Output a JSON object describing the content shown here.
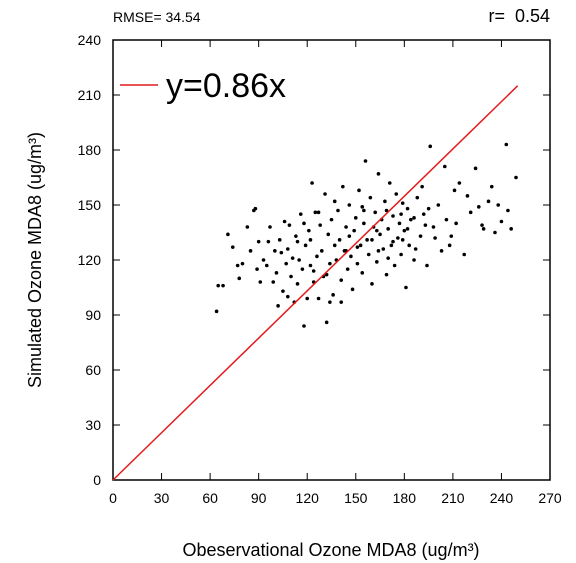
{
  "chart_data": {
    "type": "scatter",
    "title": "",
    "rmse_label": "RMSE= 34.54",
    "r_label": "r=  0.54",
    "xlabel": "Obeservational Ozone MDA8 (ug/m³)",
    "ylabel": "Simulated Ozone MDA8 (ug/m³)",
    "xlim": [
      0,
      270
    ],
    "ylim": [
      0,
      240
    ],
    "xticks": [
      0,
      30,
      60,
      90,
      120,
      150,
      180,
      210,
      240,
      270
    ],
    "xtick_labels": [
      "0",
      "30",
      "60",
      "90",
      "120",
      "150",
      "180",
      "210",
      "240",
      "270"
    ],
    "yticks": [
      0,
      30,
      60,
      90,
      120,
      150,
      180,
      210,
      240
    ],
    "ytick_labels": [
      "0",
      "30",
      "60",
      "90",
      "120",
      "150",
      "180",
      "210",
      "240"
    ],
    "grid": false,
    "legend_position": "top-left",
    "fit_line": {
      "label": "y=0.86x",
      "slope": 0.86,
      "x_range": [
        0,
        250
      ],
      "color": "#e41a1c"
    },
    "point_color": "#000000",
    "points": [
      [
        64,
        92
      ],
      [
        65,
        106
      ],
      [
        68,
        106
      ],
      [
        71,
        134
      ],
      [
        74,
        127
      ],
      [
        77,
        117
      ],
      [
        78,
        110
      ],
      [
        80,
        118
      ],
      [
        83,
        138
      ],
      [
        85,
        125
      ],
      [
        87,
        147
      ],
      [
        88,
        148
      ],
      [
        89,
        115
      ],
      [
        90,
        130
      ],
      [
        91,
        108
      ],
      [
        93,
        120
      ],
      [
        95,
        117
      ],
      [
        96,
        130
      ],
      [
        97,
        138
      ],
      [
        99,
        108
      ],
      [
        100,
        125
      ],
      [
        101,
        113
      ],
      [
        102,
        95
      ],
      [
        103,
        131
      ],
      [
        104,
        124
      ],
      [
        105,
        103
      ],
      [
        106,
        141
      ],
      [
        107,
        118
      ],
      [
        108,
        126
      ],
      [
        109,
        139
      ],
      [
        110,
        111
      ],
      [
        111,
        121
      ],
      [
        112,
        97
      ],
      [
        113,
        133
      ],
      [
        114,
        107
      ],
      [
        115,
        120
      ],
      [
        116,
        145
      ],
      [
        117,
        115
      ],
      [
        118,
        84
      ],
      [
        119,
        128
      ],
      [
        120,
        99
      ],
      [
        121,
        136
      ],
      [
        122,
        117
      ],
      [
        123,
        162
      ],
      [
        124,
        108
      ],
      [
        125,
        146
      ],
      [
        126,
        122
      ],
      [
        127,
        99
      ],
      [
        128,
        139
      ],
      [
        129,
        125
      ],
      [
        130,
        111
      ],
      [
        131,
        156
      ],
      [
        132,
        86
      ],
      [
        133,
        134
      ],
      [
        134,
        118
      ],
      [
        135,
        142
      ],
      [
        136,
        101
      ],
      [
        137,
        128
      ],
      [
        138,
        120
      ],
      [
        139,
        147
      ],
      [
        140,
        131
      ],
      [
        141,
        109
      ],
      [
        142,
        160
      ],
      [
        143,
        125
      ],
      [
        144,
        138
      ],
      [
        145,
        115
      ],
      [
        146,
        150
      ],
      [
        147,
        122
      ],
      [
        148,
        104
      ],
      [
        149,
        136
      ],
      [
        150,
        143
      ],
      [
        151,
        118
      ],
      [
        152,
        158
      ],
      [
        153,
        128
      ],
      [
        154,
        113
      ],
      [
        155,
        147
      ],
      [
        156,
        174
      ],
      [
        157,
        131
      ],
      [
        158,
        123
      ],
      [
        159,
        154
      ],
      [
        160,
        107
      ],
      [
        161,
        138
      ],
      [
        162,
        146
      ],
      [
        163,
        119
      ],
      [
        164,
        167
      ],
      [
        165,
        134
      ],
      [
        166,
        142
      ],
      [
        167,
        126
      ],
      [
        168,
        152
      ],
      [
        169,
        112
      ],
      [
        170,
        137
      ],
      [
        171,
        162
      ],
      [
        172,
        128
      ],
      [
        173,
        144
      ],
      [
        174,
        117
      ],
      [
        175,
        156
      ],
      [
        176,
        132
      ],
      [
        177,
        140
      ],
      [
        178,
        123
      ],
      [
        179,
        151
      ],
      [
        180,
        136
      ],
      [
        181,
        105
      ],
      [
        182,
        148
      ],
      [
        183,
        128
      ],
      [
        184,
        142
      ],
      [
        186,
        120
      ],
      [
        188,
        154
      ],
      [
        190,
        133
      ],
      [
        192,
        145
      ],
      [
        194,
        117
      ],
      [
        196,
        182
      ],
      [
        198,
        138
      ],
      [
        201,
        150
      ],
      [
        203,
        125
      ],
      [
        206,
        142
      ],
      [
        209,
        133
      ],
      [
        211,
        158
      ],
      [
        214,
        162
      ],
      [
        217,
        123
      ],
      [
        221,
        146
      ],
      [
        224,
        170
      ],
      [
        228,
        139
      ],
      [
        232,
        152
      ],
      [
        236,
        135
      ],
      [
        240,
        141
      ],
      [
        243,
        183
      ],
      [
        246,
        137
      ],
      [
        249,
        165
      ],
      [
        118,
        140
      ],
      [
        122,
        131
      ],
      [
        127,
        146
      ],
      [
        132,
        112
      ],
      [
        137,
        152
      ],
      [
        141,
        97
      ],
      [
        146,
        133
      ],
      [
        151,
        127
      ],
      [
        155,
        140
      ],
      [
        160,
        131
      ],
      [
        164,
        125
      ],
      [
        169,
        147
      ],
      [
        173,
        130
      ],
      [
        178,
        145
      ],
      [
        182,
        137
      ],
      [
        187,
        126
      ],
      [
        191,
        160
      ],
      [
        195,
        148
      ],
      [
        199,
        132
      ],
      [
        205,
        171
      ],
      [
        212,
        140
      ],
      [
        219,
        155
      ],
      [
        226,
        149
      ],
      [
        234,
        160
      ],
      [
        244,
        147
      ],
      [
        108,
        100
      ],
      [
        114,
        130
      ],
      [
        124,
        114
      ],
      [
        134,
        97
      ],
      [
        144,
        125
      ],
      [
        154,
        149
      ],
      [
        163,
        136
      ],
      [
        170,
        121
      ],
      [
        179,
        131
      ],
      [
        186,
        143
      ],
      [
        193,
        139
      ],
      [
        208,
        128
      ],
      [
        229,
        137
      ],
      [
        238,
        150
      ]
    ]
  }
}
